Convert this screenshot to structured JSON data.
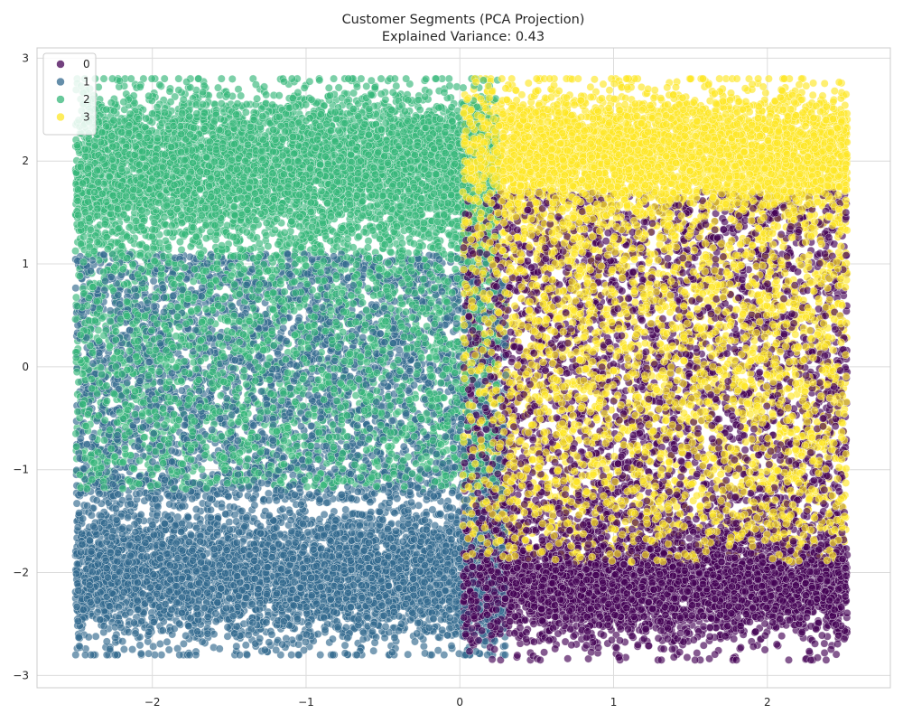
{
  "chart_data": {
    "type": "scatter",
    "title": "Customer Segments (PCA Projection)",
    "subtitle": "Explained Variance: 0.43",
    "xlabel": "",
    "ylabel": "",
    "xlim": [
      -2.75,
      2.8
    ],
    "ylim": [
      -3.12,
      3.1
    ],
    "xticks": [
      -2,
      -1,
      0,
      1,
      2
    ],
    "xtick_labels": [
      "−2",
      "−1",
      "0",
      "1",
      "2"
    ],
    "yticks": [
      -3,
      -2,
      -1,
      0,
      1,
      2,
      3
    ],
    "ytick_labels": [
      "−3",
      "−2",
      "−1",
      "0",
      "1",
      "2",
      "3"
    ],
    "grid": true,
    "legend_position": "top-left",
    "legend": [
      {
        "label": "0",
        "color": "#440154"
      },
      {
        "label": "1",
        "color": "#31688e"
      },
      {
        "label": "2",
        "color": "#35b779"
      },
      {
        "label": "3",
        "color": "#fde725"
      }
    ],
    "series": [
      {
        "name": "0",
        "color": "#440154",
        "x_range": [
          0.0,
          2.55
        ],
        "y_range": [
          -2.85,
          1.9
        ],
        "dense_region_y": [
          -2.5,
          -1.5
        ],
        "approx_count": 9000
      },
      {
        "name": "1",
        "color": "#31688e",
        "x_range": [
          -2.5,
          0.35
        ],
        "y_range": [
          -2.8,
          1.3
        ],
        "dense_region_y": [
          -2.5,
          -1.0
        ],
        "approx_count": 9000
      },
      {
        "name": "2",
        "color": "#35b779",
        "x_range": [
          -2.5,
          0.3
        ],
        "y_range": [
          -1.3,
          2.8
        ],
        "dense_region_y": [
          0.5,
          2.6
        ],
        "approx_count": 9000
      },
      {
        "name": "3",
        "color": "#fde725",
        "x_range": [
          0.0,
          2.55
        ],
        "y_range": [
          -1.9,
          2.8
        ],
        "dense_region_y": [
          1.6,
          2.6
        ],
        "approx_count": 9000
      }
    ],
    "marker_alpha": 0.65
  }
}
